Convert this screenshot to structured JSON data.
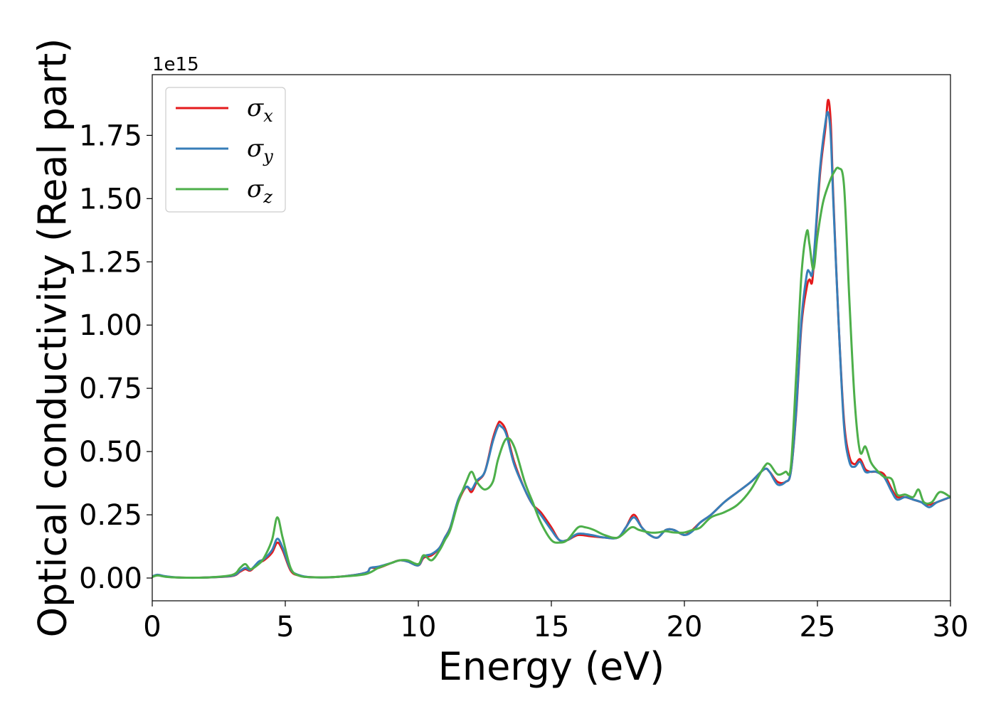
{
  "chart_data": {
    "type": "line",
    "xlabel": "Energy (eV)",
    "ylabel": "Optical conductivity (Real part)",
    "y_offset_label": "1e15",
    "y_scale": 1000000000000000.0,
    "xlim": [
      0,
      30
    ],
    "ylim": [
      -0.09,
      1.99
    ],
    "xticks": [
      0,
      5,
      10,
      15,
      20,
      25,
      30
    ],
    "xtick_labels": [
      "0",
      "5",
      "10",
      "15",
      "20",
      "25",
      "30"
    ],
    "yticks": [
      0,
      0.25,
      0.5,
      0.75,
      1.0,
      1.25,
      1.5,
      1.75
    ],
    "ytick_labels": [
      "0.00",
      "0.25",
      "0.50",
      "0.75",
      "1.00",
      "1.25",
      "1.50",
      "1.75"
    ],
    "grid": false,
    "legend_position": "top-left",
    "series": [
      {
        "name": "σx",
        "legend_base": "σ",
        "legend_sub": "x",
        "color": "#e41a1c",
        "x": [
          0,
          0.2,
          0.5,
          1,
          2,
          3,
          3.3,
          3.5,
          3.7,
          4,
          4.2,
          4.5,
          4.7,
          4.9,
          5.2,
          5.5,
          6,
          7,
          8,
          8.2,
          8.5,
          9,
          9.3,
          9.6,
          10,
          10.2,
          10.5,
          10.8,
          11,
          11.2,
          11.5,
          11.8,
          12,
          12.2,
          12.5,
          12.8,
          13,
          13.1,
          13.3,
          13.6,
          14,
          14.3,
          14.6,
          15,
          15.3,
          15.6,
          16,
          16.5,
          17,
          17.5,
          17.8,
          18.1,
          18.4,
          18.7,
          19,
          19.3,
          19.6,
          20,
          20.3,
          20.6,
          21,
          21.5,
          22,
          22.5,
          23,
          23.2,
          23.5,
          23.8,
          24,
          24.2,
          24.4,
          24.6,
          24.7,
          24.8,
          24.9,
          25.1,
          25.3,
          25.4,
          25.5,
          25.6,
          25.8,
          26,
          26.2,
          26.4,
          26.6,
          26.8,
          27,
          27.2,
          27.5,
          27.8,
          28,
          28.3,
          28.6,
          28.9,
          29.2,
          29.5,
          30
        ],
        "y": [
          0.005,
          0.012,
          0.006,
          0.002,
          0.002,
          0.008,
          0.025,
          0.035,
          0.03,
          0.06,
          0.07,
          0.1,
          0.14,
          0.11,
          0.03,
          0.01,
          0.003,
          0.005,
          0.02,
          0.04,
          0.04,
          0.06,
          0.07,
          0.065,
          0.05,
          0.08,
          0.09,
          0.12,
          0.16,
          0.2,
          0.3,
          0.36,
          0.34,
          0.38,
          0.42,
          0.55,
          0.61,
          0.615,
          0.58,
          0.46,
          0.35,
          0.29,
          0.26,
          0.2,
          0.15,
          0.15,
          0.17,
          0.165,
          0.16,
          0.16,
          0.2,
          0.25,
          0.2,
          0.17,
          0.16,
          0.19,
          0.19,
          0.17,
          0.19,
          0.22,
          0.25,
          0.3,
          0.34,
          0.38,
          0.43,
          0.42,
          0.38,
          0.38,
          0.42,
          0.65,
          1.0,
          1.15,
          1.18,
          1.17,
          1.3,
          1.6,
          1.78,
          1.89,
          1.8,
          1.5,
          1.0,
          0.62,
          0.48,
          0.45,
          0.47,
          0.43,
          0.42,
          0.42,
          0.41,
          0.35,
          0.32,
          0.32,
          0.31,
          0.3,
          0.29,
          0.3,
          0.32
        ]
      },
      {
        "name": "σy",
        "legend_base": "σ",
        "legend_sub": "y",
        "color": "#377eb8",
        "x": [
          0,
          0.2,
          0.5,
          1,
          2,
          3,
          3.3,
          3.5,
          3.7,
          4,
          4.2,
          4.5,
          4.7,
          4.9,
          5.2,
          5.5,
          6,
          7,
          8,
          8.2,
          8.5,
          9,
          9.3,
          9.6,
          10,
          10.2,
          10.5,
          10.8,
          11,
          11.2,
          11.5,
          11.8,
          12,
          12.2,
          12.5,
          12.8,
          13,
          13.1,
          13.3,
          13.6,
          14,
          14.3,
          14.6,
          15,
          15.3,
          15.6,
          16,
          16.5,
          17,
          17.5,
          17.8,
          18.1,
          18.4,
          18.7,
          19,
          19.3,
          19.6,
          20,
          20.3,
          20.6,
          21,
          21.5,
          22,
          22.5,
          23,
          23.2,
          23.5,
          23.8,
          24,
          24.2,
          24.4,
          24.6,
          24.7,
          24.8,
          24.9,
          25.1,
          25.3,
          25.4,
          25.5,
          25.6,
          25.8,
          26,
          26.2,
          26.4,
          26.6,
          26.8,
          27,
          27.2,
          27.5,
          27.8,
          28,
          28.3,
          28.6,
          28.9,
          29.2,
          29.5,
          30
        ],
        "y": [
          0.006,
          0.013,
          0.007,
          0.002,
          0.002,
          0.009,
          0.028,
          0.04,
          0.033,
          0.065,
          0.075,
          0.11,
          0.155,
          0.12,
          0.035,
          0.012,
          0.003,
          0.005,
          0.02,
          0.04,
          0.045,
          0.06,
          0.07,
          0.065,
          0.05,
          0.085,
          0.095,
          0.12,
          0.16,
          0.2,
          0.31,
          0.36,
          0.35,
          0.385,
          0.42,
          0.54,
          0.6,
          0.6,
          0.57,
          0.45,
          0.35,
          0.29,
          0.25,
          0.19,
          0.15,
          0.15,
          0.175,
          0.17,
          0.16,
          0.16,
          0.2,
          0.24,
          0.2,
          0.17,
          0.16,
          0.19,
          0.19,
          0.17,
          0.185,
          0.22,
          0.25,
          0.3,
          0.34,
          0.38,
          0.43,
          0.42,
          0.37,
          0.38,
          0.42,
          0.66,
          1.02,
          1.2,
          1.21,
          1.2,
          1.32,
          1.62,
          1.8,
          1.84,
          1.75,
          1.48,
          1.0,
          0.6,
          0.46,
          0.44,
          0.46,
          0.42,
          0.42,
          0.42,
          0.4,
          0.34,
          0.31,
          0.32,
          0.31,
          0.3,
          0.28,
          0.3,
          0.32
        ]
      },
      {
        "name": "σz",
        "legend_base": "σ",
        "legend_sub": "z",
        "color": "#4daf4a",
        "x": [
          0,
          0.2,
          0.5,
          1,
          2,
          3,
          3.3,
          3.5,
          3.7,
          4,
          4.2,
          4.5,
          4.7,
          4.9,
          5.2,
          5.5,
          6,
          7,
          8,
          8.5,
          9,
          9.3,
          9.6,
          10,
          10.2,
          10.5,
          10.8,
          11,
          11.2,
          11.5,
          11.8,
          12,
          12.2,
          12.5,
          12.8,
          13,
          13.3,
          13.6,
          14,
          14.3,
          14.6,
          15,
          15.3,
          15.6,
          16,
          16.3,
          16.6,
          17,
          17.5,
          18,
          18.3,
          18.7,
          19,
          19.3,
          19.6,
          20,
          20.3,
          20.6,
          21,
          21.5,
          22,
          22.5,
          23,
          23.2,
          23.5,
          23.8,
          24,
          24.2,
          24.4,
          24.6,
          24.7,
          24.85,
          25,
          25.2,
          25.4,
          25.6,
          25.8,
          26,
          26.2,
          26.4,
          26.6,
          26.8,
          27,
          27.2,
          27.5,
          27.8,
          28,
          28.3,
          28.6,
          28.8,
          29,
          29.3,
          29.6,
          30
        ],
        "y": [
          0.004,
          0.01,
          0.005,
          0.002,
          0.002,
          0.012,
          0.04,
          0.055,
          0.035,
          0.055,
          0.08,
          0.15,
          0.24,
          0.16,
          0.04,
          0.01,
          0.003,
          0.005,
          0.015,
          0.04,
          0.06,
          0.07,
          0.07,
          0.055,
          0.09,
          0.07,
          0.11,
          0.15,
          0.19,
          0.3,
          0.38,
          0.42,
          0.38,
          0.35,
          0.38,
          0.47,
          0.55,
          0.52,
          0.38,
          0.3,
          0.22,
          0.15,
          0.14,
          0.15,
          0.2,
          0.2,
          0.19,
          0.17,
          0.16,
          0.2,
          0.19,
          0.18,
          0.18,
          0.185,
          0.18,
          0.18,
          0.19,
          0.2,
          0.24,
          0.26,
          0.29,
          0.35,
          0.44,
          0.45,
          0.41,
          0.42,
          0.44,
          0.8,
          1.2,
          1.37,
          1.32,
          1.22,
          1.35,
          1.48,
          1.55,
          1.6,
          1.62,
          1.55,
          1.1,
          0.7,
          0.5,
          0.52,
          0.46,
          0.43,
          0.4,
          0.39,
          0.33,
          0.33,
          0.32,
          0.35,
          0.3,
          0.3,
          0.34,
          0.32
        ]
      }
    ]
  }
}
